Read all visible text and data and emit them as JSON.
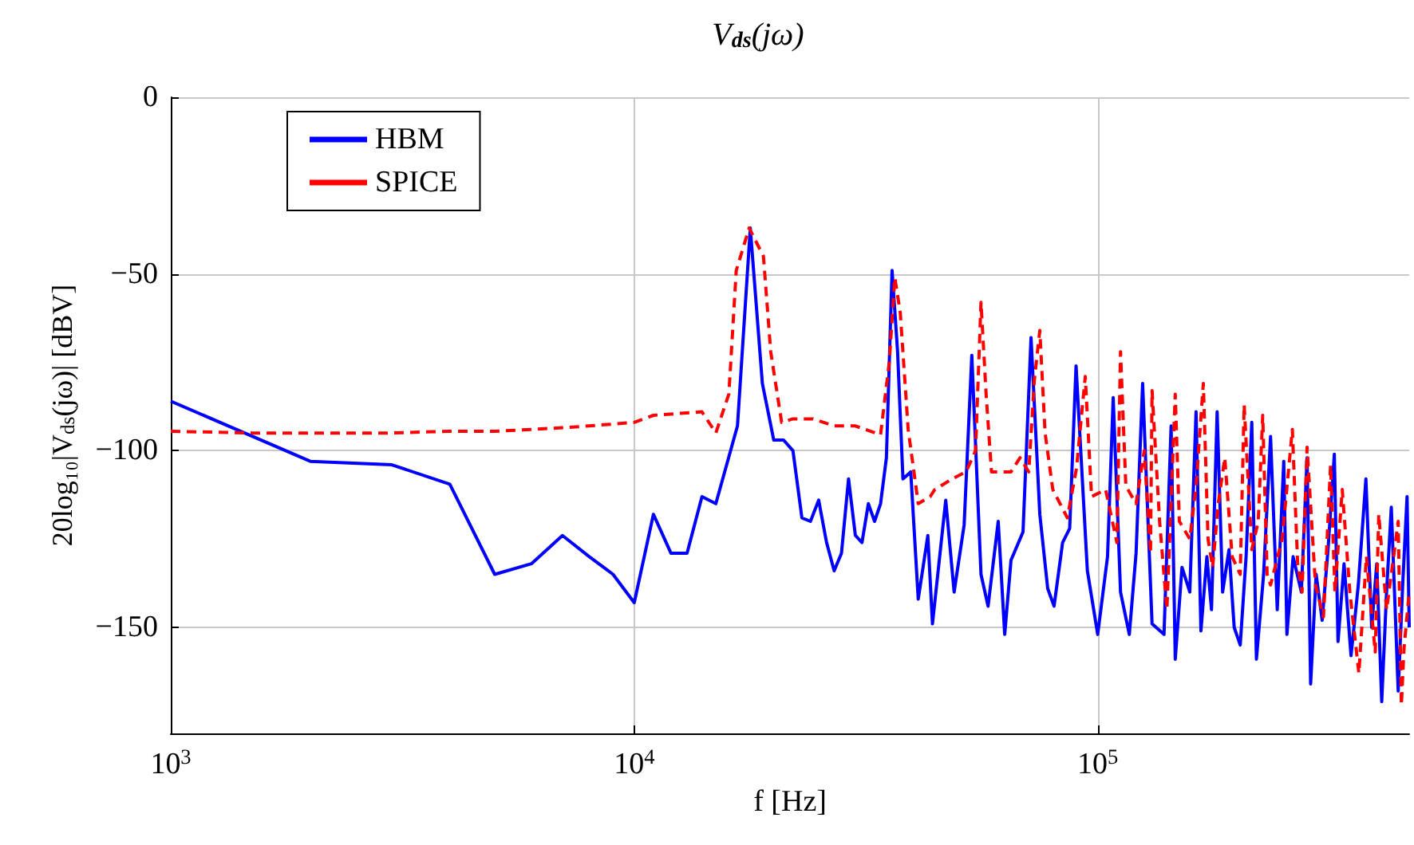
{
  "chart_data": {
    "type": "line",
    "title": "V$_{ds}$(jω)",
    "xlabel": "f [Hz]",
    "ylabel": "20log₁₀|V$_{ds}$(jω)| [dBV]",
    "log": "x",
    "xlim": [
      1000,
      470000
    ],
    "xticks": [
      {
        "value": 1000,
        "label": "10$^{3}$"
      },
      {
        "value": 10000,
        "label": "10$^{4}$"
      },
      {
        "value": 100000,
        "label": "10$^{5}$"
      }
    ],
    "ylim": [
      -180,
      0
    ],
    "yticks": [
      0,
      -50,
      -100,
      -150
    ],
    "grid": true,
    "legend": "top left",
    "marker": "none",
    "series": [
      {
        "name": "HBM",
        "color": "#0000ff",
        "line_style": "solid",
        "x": [
          1000,
          2000,
          3000,
          4000,
          5000,
          6000,
          7000,
          8000,
          9000,
          10000,
          11000,
          12000,
          13000,
          14000,
          15000,
          16700,
          17800,
          18900,
          20000,
          21000,
          22000,
          23000,
          24000,
          25000,
          26000,
          27000,
          28000,
          29000,
          30000,
          31000,
          32000,
          33000,
          34000,
          35000,
          36000,
          37000,
          38000,
          39500,
          41000,
          43000,
          44000,
          47000,
          49000,
          51500,
          53500,
          56000,
          58000,
          61000,
          63000,
          65000,
          69000,
          71800,
          75000,
          78000,
          80500,
          84000,
          87000,
          89800,
          95000,
          100000,
          105000,
          108000,
          112000,
          117000,
          121000,
          125000,
          131000,
          139000,
          144000,
          147000,
          152000,
          158000,
          163000,
          167000,
          172000,
          176000,
          181000,
          186000,
          192000,
          197000,
          203000,
          209000,
          215000,
          220000,
          228000,
          236000,
          244000,
          252000,
          256000,
          264000,
          275000,
          283000,
          288000,
          296000,
          305000,
          314000,
          324000,
          330000,
          340000,
          352000,
          365000,
          379000,
          390000,
          400000,
          410000,
          420000,
          430000,
          445000,
          455000,
          465000,
          470000
        ],
        "values": [
          -86,
          -103,
          -104,
          -109.5,
          -135,
          -132,
          -124,
          -130,
          -135,
          -143,
          -118,
          -129,
          -129,
          -113,
          -115,
          -93,
          -37,
          -81,
          -97,
          -97,
          -100,
          -119,
          -120,
          -114,
          -126,
          -134,
          -129,
          -108,
          -124,
          -126,
          -115,
          -120,
          -115,
          -102,
          -49,
          -72,
          -108,
          -106,
          -142,
          -124,
          -149,
          -114,
          -140,
          -121,
          -73,
          -135,
          -144,
          -120,
          -152,
          -131,
          -123,
          -68,
          -118,
          -139,
          -144,
          -126,
          -122,
          -76,
          -134,
          -152,
          -130,
          -85,
          -140,
          -152,
          -129,
          -81,
          -149,
          -152,
          -93,
          -159,
          -133,
          -140,
          -89,
          -151,
          -130,
          -145,
          -89,
          -140,
          -128,
          -150,
          -155,
          -130,
          -92,
          -159,
          -135,
          -96,
          -145,
          -103,
          -152,
          -130,
          -140,
          -102,
          -166,
          -135,
          -148,
          -128,
          -101,
          -154,
          -132,
          -158,
          -138,
          -108,
          -150,
          -132,
          -171,
          -140,
          -116,
          -168,
          -138,
          -113,
          -150
        ]
      },
      {
        "name": "SPICE",
        "color": "#ff0000",
        "line_style": "dashed",
        "x": [
          1000,
          1500,
          2000,
          3000,
          4000,
          5000,
          6000,
          7000,
          8000,
          10000,
          11000,
          14000,
          15000,
          16000,
          16600,
          17700,
          19000,
          19700,
          20800,
          22000,
          24300,
          27000,
          30000,
          34000,
          35500,
          36500,
          37500,
          39000,
          41000,
          43500,
          44500,
          48500,
          52000,
          54500,
          56000,
          57500,
          59000,
          65000,
          68000,
          71000,
          73000,
          75000,
          77000,
          80000,
          86000,
          90000,
          94000,
          97000,
          104000,
          110000,
          112000,
          115000,
          121000,
          126000,
          130000,
          131000,
          136000,
          141000,
          147000,
          150000,
          158000,
          163000,
          169000,
          173000,
          177000,
          182000,
          188000,
          195000,
          203000,
          207000,
          215000,
          222000,
          227000,
          232000,
          236000,
          250000,
          263000,
          270000,
          276000,
          283000,
          295000,
          307000,
          318000,
          325000,
          337000,
          350000,
          366000,
          380000,
          397000,
          404000,
          420000,
          435000,
          445000,
          452000,
          458000,
          470000
        ],
        "values": [
          -94.5,
          -95,
          -95,
          -95,
          -94.5,
          -94.5,
          -94,
          -93.5,
          -93,
          -92,
          -90,
          -89,
          -95,
          -84,
          -49,
          -37,
          -45,
          -72,
          -92,
          -91,
          -91,
          -93,
          -93,
          -95.5,
          -75,
          -51,
          -61,
          -94,
          -115,
          -113,
          -111,
          -108,
          -106,
          -100,
          -58,
          -85,
          -106,
          -106,
          -102,
          -106,
          -80,
          -66,
          -95,
          -111,
          -119,
          -105,
          -79,
          -113,
          -111,
          -126,
          -72,
          -110,
          -115,
          -100,
          -129,
          -83,
          -120,
          -145,
          -84,
          -120,
          -125,
          -110,
          -81,
          -125,
          -133,
          -115,
          -102,
          -130,
          -135,
          -87,
          -128,
          -120,
          -90,
          -135,
          -138,
          -125,
          -94,
          -132,
          -140,
          -99,
          -138,
          -147,
          -104,
          -140,
          -111,
          -140,
          -163,
          -130,
          -157,
          -118,
          -145,
          -130,
          -120,
          -172,
          -156,
          -140
        ]
      }
    ]
  }
}
